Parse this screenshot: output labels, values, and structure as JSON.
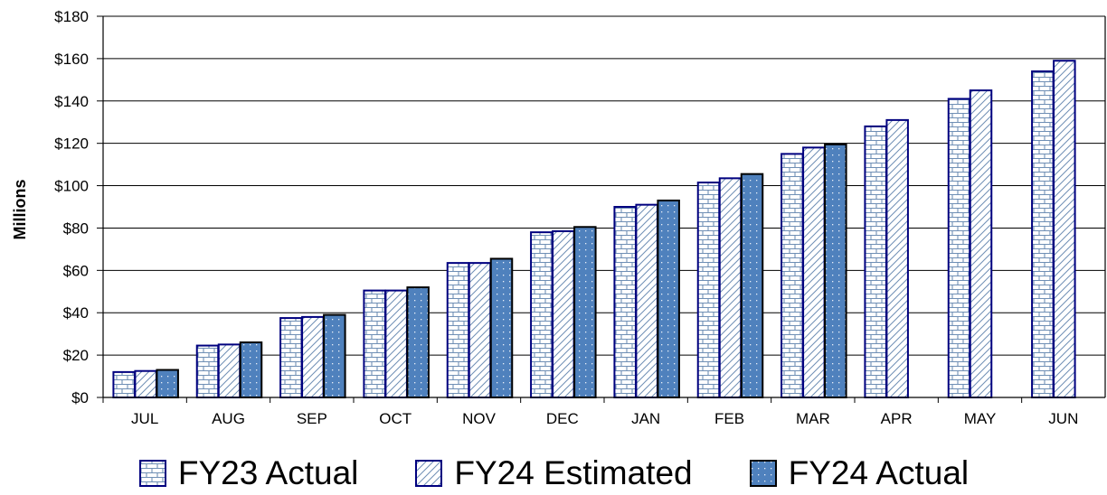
{
  "chart_data": {
    "type": "bar",
    "ylabel": "Millions",
    "categories": [
      "JUL",
      "AUG",
      "SEP",
      "OCT",
      "NOV",
      "DEC",
      "JAN",
      "FEB",
      "MAR",
      "APR",
      "MAY",
      "JUN"
    ],
    "ylim": [
      0,
      180
    ],
    "yticks": [
      "$0",
      "$20",
      "$40",
      "$60",
      "$80",
      "$100",
      "$120",
      "$140",
      "$160",
      "$180"
    ],
    "grid": true,
    "legend_position": "bottom",
    "series": [
      {
        "name": "FY23 Actual",
        "values": [
          12,
          24.5,
          37.5,
          50.5,
          63.5,
          78,
          90,
          101.5,
          115,
          128,
          141,
          154
        ]
      },
      {
        "name": "FY24 Estimated",
        "values": [
          12.5,
          25,
          38,
          50.5,
          63.5,
          78.5,
          91,
          103.5,
          118,
          131,
          145,
          159
        ]
      },
      {
        "name": "FY24 Actual",
        "values": [
          13,
          26,
          39,
          52,
          65.5,
          80.5,
          93,
          105.5,
          119.5,
          null,
          null,
          null
        ]
      }
    ],
    "colors": {
      "fy23": "#ffffff",
      "fy24est": "#ffffff",
      "fy24act": "#4f81bd",
      "outline": "#00007f"
    }
  }
}
